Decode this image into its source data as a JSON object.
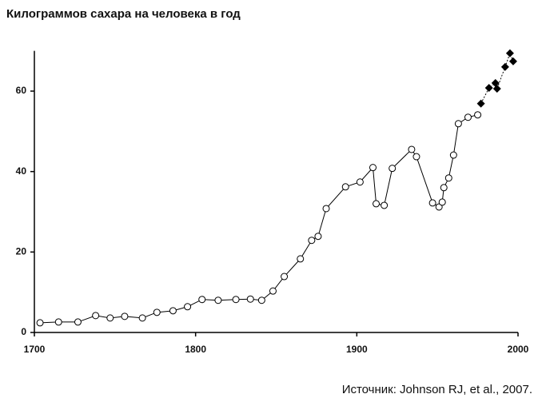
{
  "chart_data": {
    "type": "line",
    "title": "Килограммов сахара на человека в год",
    "source": "Источник: Johnson RJ, et al., 2007.",
    "xlim": [
      1700,
      2000
    ],
    "xticks": [
      1700,
      1800,
      1900,
      2000
    ],
    "ylim": [
      0,
      70
    ],
    "yticks": [
      0,
      20,
      40,
      60
    ],
    "series": [
      {
        "color": "#000000",
        "marker": "circle",
        "line_style": "solid",
        "x": [
          1703.5,
          1715,
          1727,
          1738,
          1747,
          1756,
          1767,
          1776,
          1786,
          1795,
          1804,
          1814,
          1825,
          1834,
          1841,
          1848,
          1855,
          1865,
          1872,
          1876,
          1881,
          1893,
          1902,
          1910,
          1912,
          1917,
          1922,
          1934,
          1937,
          1947,
          1951,
          1953,
          1954,
          1957,
          1960,
          1963,
          1969,
          1975
        ],
        "values": [
          2.4,
          2.6,
          2.6,
          4.2,
          3.6,
          4.0,
          3.6,
          5.0,
          5.4,
          6.4,
          8.2,
          8.0,
          8.2,
          8.3,
          8.0,
          10.3,
          13.9,
          18.3,
          22.9,
          23.9,
          30.8,
          36.2,
          37.4,
          41.0,
          32.0,
          31.6,
          40.8,
          45.5,
          43.7,
          32.2,
          31.2,
          32.4,
          36.0,
          38.4,
          44.1,
          51.9,
          53.5,
          54.1
        ]
      },
      {
        "color": "#000000",
        "marker": "diamond",
        "line_style": "dotted",
        "x": [
          1977,
          1982,
          1986,
          1987,
          1992,
          1995,
          1997
        ],
        "values": [
          56.9,
          60.8,
          62.0,
          60.6,
          66.0,
          69.4,
          67.4
        ]
      }
    ]
  }
}
